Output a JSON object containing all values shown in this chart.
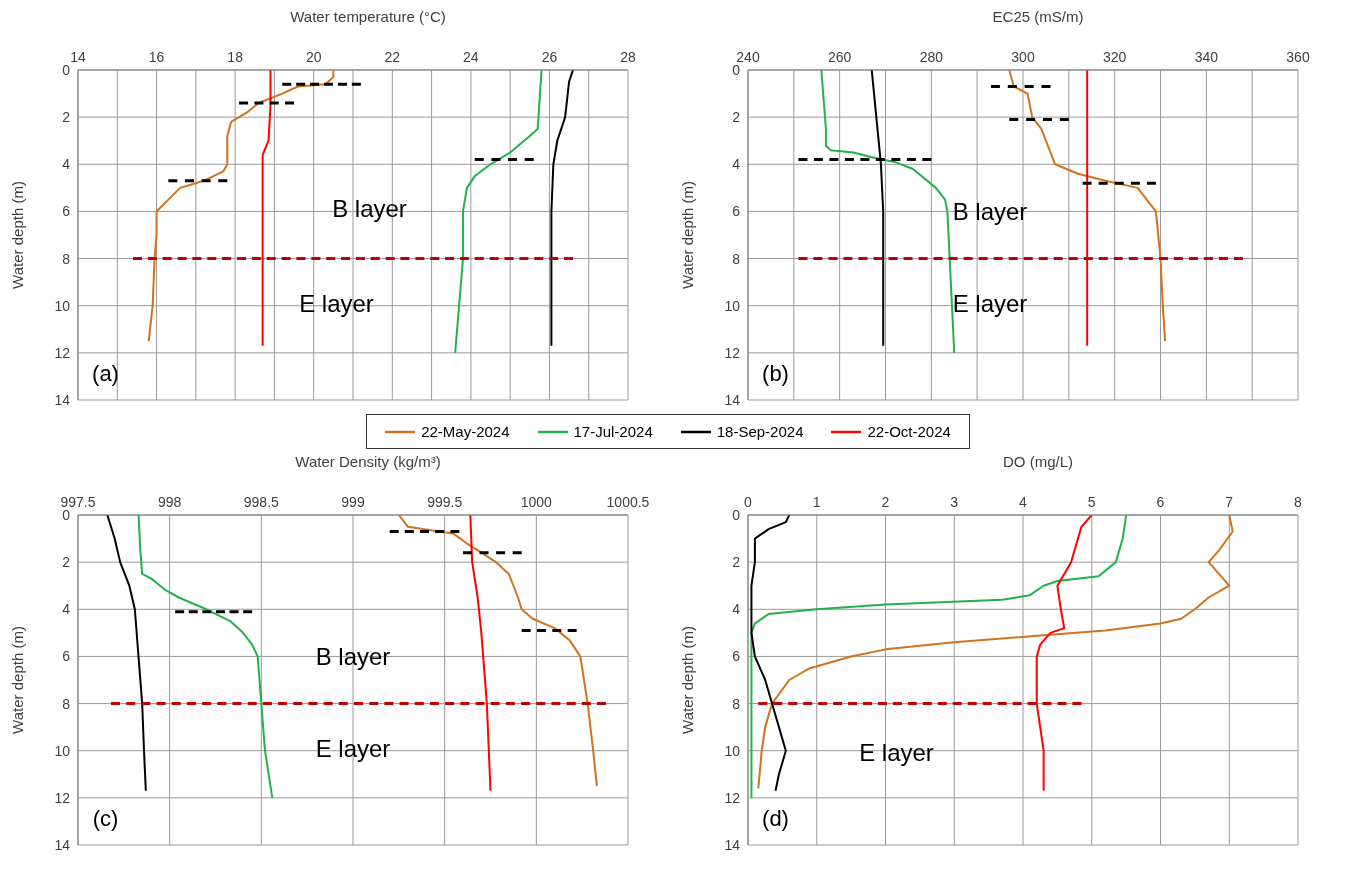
{
  "chart_data": [
    {
      "type": "line",
      "xlabel": "Water temperature (°C)",
      "ylabel": "Water depth (m)",
      "xlim": [
        14,
        28
      ],
      "xticks": [
        14,
        {
          "value": 15,
          "label": null
        },
        16,
        {
          "value": 17,
          "label": null
        },
        18,
        {
          "value": 19,
          "label": null
        },
        20,
        {
          "value": 21,
          "label": null
        },
        22,
        {
          "value": 23,
          "label": null
        },
        24,
        {
          "value": 25,
          "label": null
        },
        26,
        {
          "value": 27,
          "label": null
        },
        28
      ],
      "ylim": [
        14,
        0
      ],
      "yticks": [
        0,
        2,
        4,
        6,
        8,
        10,
        12,
        14
      ],
      "grid": true,
      "marker": "none",
      "legend": "bottom",
      "series": [
        {
          "name": "22-May-2024",
          "color": "#d0731f",
          "x": [
            20.5,
            20.5,
            20.3,
            19.6,
            19.2,
            18.6,
            18.3,
            17.9,
            17.8,
            17.8,
            17.8,
            17.7,
            17.2,
            16.6,
            16.3,
            16.0,
            16.0,
            15.95,
            15.9,
            15.8
          ],
          "values": [
            0,
            0.3,
            0.6,
            0.7,
            1.0,
            1.4,
            1.8,
            2.2,
            2.8,
            3.5,
            4.0,
            4.3,
            4.7,
            5.0,
            5.5,
            6,
            7,
            8,
            10,
            11.5
          ]
        },
        {
          "name": "17-Jul-2024",
          "color": "#22b14c",
          "x": [
            25.8,
            25.7,
            25.5,
            25.0,
            24.5,
            24.1,
            23.9,
            23.8,
            23.8,
            23.7,
            23.65,
            23.6
          ],
          "values": [
            0,
            2.5,
            2.8,
            3.5,
            4,
            4.5,
            5,
            6,
            8,
            10,
            11,
            12
          ]
        },
        {
          "name": "18-Sep-2024",
          "color": "#000000",
          "x": [
            26.6,
            26.5,
            26.4,
            26.2,
            26.1,
            26.05,
            26.05,
            26.05
          ],
          "values": [
            0,
            0.5,
            2,
            3,
            4,
            6,
            8,
            11.7
          ]
        },
        {
          "name": "22-Oct-2024",
          "color": "#ff0000",
          "x": [
            18.9,
            18.9,
            18.85,
            18.7,
            18.7,
            18.7,
            18.7
          ],
          "values": [
            0,
            1.5,
            3,
            3.6,
            5,
            8,
            11.7
          ]
        },
        {
          "color": "#000000",
          "line_style": "dashed",
          "x": [
            19.2,
            21.2
          ],
          "values": [
            0.6,
            0.6
          ]
        },
        {
          "color": "#000000",
          "line_style": "dashed",
          "x": [
            18.1,
            19.5
          ],
          "values": [
            1.4,
            1.4
          ]
        },
        {
          "color": "#000000",
          "line_style": "dashed",
          "x": [
            16.3,
            17.8
          ],
          "values": [
            4.7,
            4.7
          ]
        },
        {
          "color": "#000000",
          "line_style": "dashed",
          "x": [
            24.1,
            25.6
          ],
          "values": [
            3.8,
            3.8
          ]
        },
        {
          "color": "#c00000",
          "line_style": "dashed",
          "x": [
            15.4,
            26.6
          ],
          "values": [
            8,
            8
          ]
        }
      ],
      "annotations": [
        "B layer",
        "E layer",
        "(a)"
      ]
    },
    {
      "type": "line",
      "xlabel": "EC25 (mS/m)",
      "ylabel": "Water depth (m)",
      "xlim": [
        240,
        360
      ],
      "xticks": [
        240,
        {
          "value": 250,
          "label": null
        },
        260,
        {
          "value": 270,
          "label": null
        },
        280,
        {
          "value": 290,
          "label": null
        },
        300,
        {
          "value": 310,
          "label": null
        },
        320,
        {
          "value": 330,
          "label": null
        },
        340,
        {
          "value": 350,
          "label": null
        },
        360
      ],
      "ylim": [
        14,
        0
      ],
      "yticks": [
        0,
        2,
        4,
        6,
        8,
        10,
        12,
        14
      ],
      "grid": true,
      "marker": "none",
      "series": [
        {
          "color": "#d0731f",
          "x": [
            297,
            298,
            301,
            302,
            304,
            305,
            307,
            312,
            318,
            325,
            329,
            330,
            330.5,
            331
          ],
          "values": [
            0,
            0.7,
            1.0,
            2,
            2.5,
            3,
            4,
            4.4,
            4.7,
            5,
            6,
            8,
            10,
            11.5
          ]
        },
        {
          "color": "#22b14c",
          "x": [
            256,
            257,
            257,
            258,
            263,
            267,
            272,
            276,
            281,
            283,
            283.5,
            284,
            284.5,
            285
          ],
          "values": [
            0,
            2.5,
            3.2,
            3.4,
            3.5,
            3.7,
            3.9,
            4.2,
            5,
            5.5,
            6,
            8,
            10,
            12
          ]
        },
        {
          "color": "#000000",
          "x": [
            267,
            267.5,
            268,
            268.5,
            269,
            269.5,
            269.5,
            269.5
          ],
          "values": [
            0,
            1,
            2,
            3,
            4,
            6,
            8,
            11.7
          ]
        },
        {
          "color": "#ff0000",
          "x": [
            314,
            314
          ],
          "values": [
            0,
            11.7
          ]
        },
        {
          "color": "#000000",
          "line_style": "dashed",
          "x": [
            293,
            306
          ],
          "values": [
            0.7,
            0.7
          ]
        },
        {
          "color": "#000000",
          "line_style": "dashed",
          "x": [
            297,
            310
          ],
          "values": [
            2.1,
            2.1
          ]
        },
        {
          "color": "#000000",
          "line_style": "dashed",
          "x": [
            251,
            280
          ],
          "values": [
            3.8,
            3.8
          ]
        },
        {
          "color": "#000000",
          "line_style": "dashed",
          "x": [
            313,
            329
          ],
          "values": [
            4.8,
            4.8
          ]
        },
        {
          "color": "#c00000",
          "line_style": "dashed",
          "x": [
            251,
            348
          ],
          "values": [
            8,
            8
          ]
        }
      ],
      "annotations": [
        "B layer",
        "E layer",
        "(b)"
      ]
    },
    {
      "type": "line",
      "xlabel": "Water Density (kg/m³)",
      "ylabel": "Water depth (m)",
      "xlim": [
        997.5,
        1000.5
      ],
      "xticks": [
        997.5,
        998,
        998.5,
        999,
        999.5,
        1000,
        1000.5
      ],
      "ylim": [
        14,
        0
      ],
      "yticks": [
        0,
        2,
        4,
        6,
        8,
        10,
        12,
        14
      ],
      "grid": true,
      "marker": "none",
      "series": [
        {
          "color": "#d0731f",
          "x": [
            999.25,
            999.3,
            999.55,
            999.62,
            999.7,
            999.78,
            999.85,
            999.9,
            999.92,
            999.98,
            1000.1,
            1000.18,
            1000.24,
            1000.28,
            1000.31,
            1000.33
          ],
          "values": [
            0,
            0.5,
            0.8,
            1.2,
            1.6,
            2,
            2.5,
            3.5,
            4,
            4.4,
            4.8,
            5.3,
            6,
            8,
            10,
            11.5
          ]
        },
        {
          "color": "#22b14c",
          "x": [
            997.83,
            997.84,
            997.85,
            997.9,
            997.98,
            998.05,
            998.2,
            998.33,
            998.4,
            998.45,
            998.48,
            998.5,
            998.52,
            998.54,
            998.56
          ],
          "values": [
            0,
            1.5,
            2.5,
            2.7,
            3.2,
            3.5,
            4,
            4.5,
            5,
            5.5,
            6,
            8,
            10,
            11,
            12
          ]
        },
        {
          "color": "#000000",
          "x": [
            997.66,
            997.68,
            997.7,
            997.73,
            997.78,
            997.81,
            997.83,
            997.85,
            997.86,
            997.87
          ],
          "values": [
            0,
            0.5,
            1,
            2,
            3,
            4,
            6,
            8,
            10,
            11.7
          ]
        },
        {
          "color": "#ff0000",
          "x": [
            999.64,
            999.65,
            999.68,
            999.7,
            999.73,
            999.75
          ],
          "values": [
            0,
            2,
            3.5,
            5,
            8,
            11.7
          ]
        },
        {
          "color": "#000000",
          "line_style": "dashed",
          "x": [
            999.2,
            999.58
          ],
          "values": [
            0.7,
            0.7
          ]
        },
        {
          "color": "#000000",
          "line_style": "dashed",
          "x": [
            999.6,
            999.92
          ],
          "values": [
            1.6,
            1.6
          ]
        },
        {
          "color": "#000000",
          "line_style": "dashed",
          "x": [
            998.03,
            998.45
          ],
          "values": [
            4.1,
            4.1
          ]
        },
        {
          "color": "#000000",
          "line_style": "dashed",
          "x": [
            999.92,
            1000.22
          ],
          "values": [
            4.9,
            4.9
          ]
        },
        {
          "color": "#c00000",
          "line_style": "dashed",
          "x": [
            997.68,
            1000.38
          ],
          "values": [
            8,
            8
          ]
        }
      ],
      "annotations": [
        "B layer",
        "E layer",
        "(c)"
      ]
    },
    {
      "type": "line",
      "xlabel": "DO (mg/L)",
      "ylabel": "Water depth (m)",
      "xlim": [
        0,
        8
      ],
      "xticks": [
        0,
        1,
        2,
        3,
        4,
        5,
        6,
        7,
        8
      ],
      "ylim": [
        14,
        0
      ],
      "yticks": [
        0,
        2,
        4,
        6,
        8,
        10,
        12,
        14
      ],
      "grid": true,
      "marker": "none",
      "series": [
        {
          "color": "#d0731f",
          "x": [
            7,
            7.05,
            6.85,
            6.7,
            6.85,
            7,
            6.7,
            6.5,
            6.3,
            6.0,
            5.2,
            4.3,
            3.0,
            2.0,
            1.5,
            0.9,
            0.6,
            0.35,
            0.25,
            0.2,
            0.15
          ],
          "values": [
            0,
            0.7,
            1.5,
            2,
            2.5,
            3,
            3.5,
            4,
            4.4,
            4.6,
            4.9,
            5.1,
            5.4,
            5.7,
            6,
            6.5,
            7,
            8,
            9,
            10,
            11.6
          ]
        },
        {
          "color": "#22b14c",
          "x": [
            5.5,
            5.45,
            5.35,
            5.1,
            4.5,
            4.3,
            4.1,
            3.7,
            2,
            1,
            0.3,
            0.1,
            0.05,
            0.05,
            0.05,
            0.05
          ],
          "values": [
            0,
            1,
            2,
            2.6,
            2.8,
            3,
            3.4,
            3.6,
            3.8,
            4,
            4.2,
            4.6,
            5,
            6,
            8,
            12
          ]
        },
        {
          "color": "#000000",
          "x": [
            0.6,
            0.55,
            0.3,
            0.1,
            0.1,
            0.05,
            0.05,
            0.05,
            0.1,
            0.25,
            0.35,
            0.45,
            0.55,
            0.45,
            0.4
          ],
          "values": [
            0,
            0.3,
            0.6,
            1,
            2,
            3,
            4,
            5,
            6,
            7,
            8,
            9,
            10,
            11,
            11.7
          ]
        },
        {
          "color": "#ff0000",
          "x": [
            5.0,
            4.85,
            4.8,
            4.7,
            4.6,
            4.5,
            4.55,
            4.6,
            4.4,
            4.25,
            4.2,
            4.2,
            4.3,
            4.3
          ],
          "values": [
            0,
            0.5,
            1,
            2,
            2.5,
            3,
            4,
            4.8,
            5,
            5.5,
            6,
            8,
            10,
            11.7
          ]
        },
        {
          "color": "#c00000",
          "line_style": "dashed",
          "x": [
            0.15,
            4.85
          ],
          "values": [
            8,
            8
          ]
        }
      ],
      "annotations": [
        "E layer",
        "(d)"
      ]
    }
  ]
}
